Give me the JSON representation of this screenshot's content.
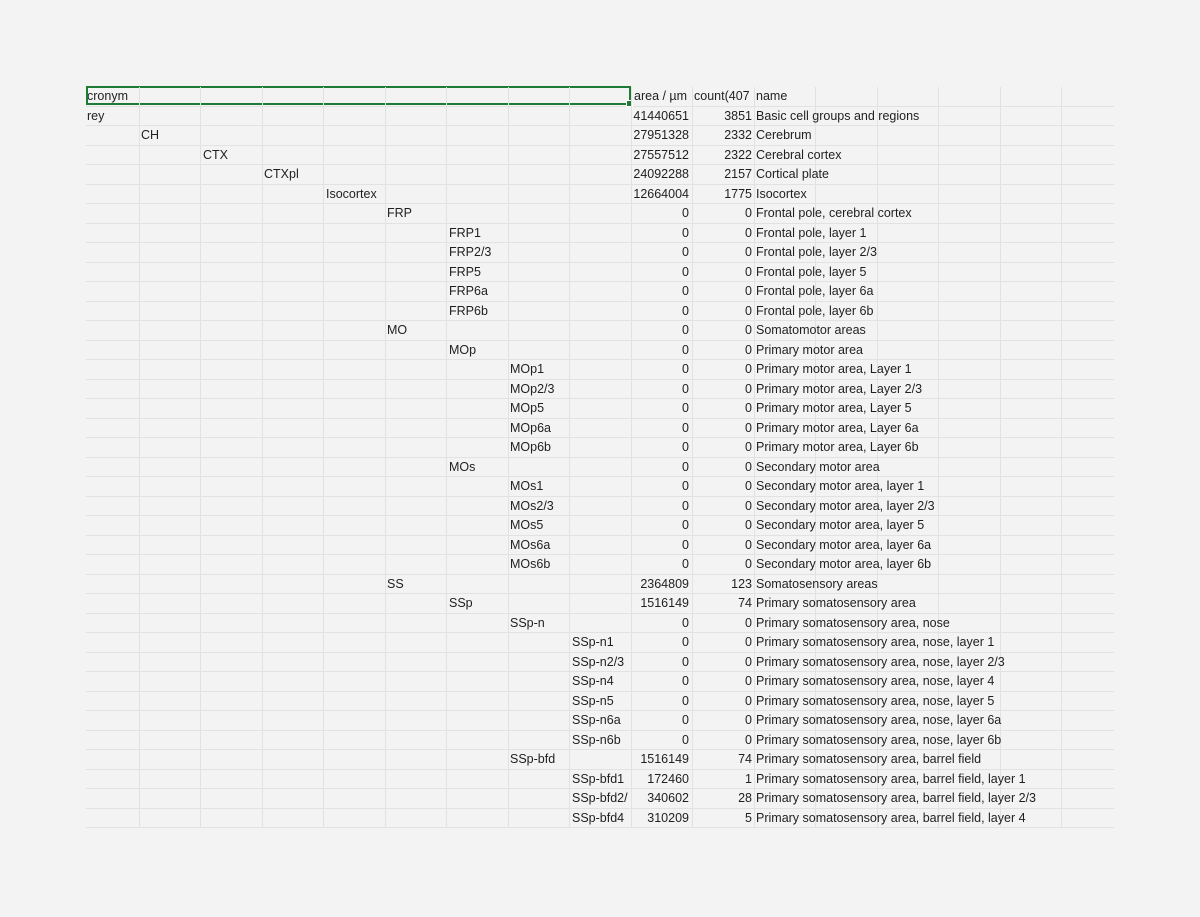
{
  "header": {
    "acronym": "cronym",
    "area": "area / µm",
    "count": "count(407",
    "name": "name"
  },
  "rows": [
    {
      "acronym": "rey",
      "level": 0,
      "area": "41440651",
      "count": "3851",
      "name": "Basic cell groups and regions"
    },
    {
      "acronym": "CH",
      "level": 1,
      "area": "27951328",
      "count": "2332",
      "name": "Cerebrum"
    },
    {
      "acronym": "CTX",
      "level": 2,
      "area": "27557512",
      "count": "2322",
      "name": "Cerebral cortex"
    },
    {
      "acronym": "CTXpl",
      "level": 3,
      "area": "24092288",
      "count": "2157",
      "name": "Cortical plate"
    },
    {
      "acronym": "Isocortex",
      "level": 4,
      "area": "12664004",
      "count": "1775",
      "name": "Isocortex"
    },
    {
      "acronym": "FRP",
      "level": 5,
      "area": "0",
      "count": "0",
      "name": "Frontal pole, cerebral cortex"
    },
    {
      "acronym": "FRP1",
      "level": 6,
      "area": "0",
      "count": "0",
      "name": "Frontal pole, layer 1"
    },
    {
      "acronym": "FRP2/3",
      "level": 6,
      "area": "0",
      "count": "0",
      "name": "Frontal pole, layer 2/3"
    },
    {
      "acronym": "FRP5",
      "level": 6,
      "area": "0",
      "count": "0",
      "name": "Frontal pole, layer 5"
    },
    {
      "acronym": "FRP6a",
      "level": 6,
      "area": "0",
      "count": "0",
      "name": "Frontal pole, layer 6a"
    },
    {
      "acronym": "FRP6b",
      "level": 6,
      "area": "0",
      "count": "0",
      "name": "Frontal pole, layer 6b"
    },
    {
      "acronym": "MO",
      "level": 5,
      "area": "0",
      "count": "0",
      "name": "Somatomotor areas"
    },
    {
      "acronym": "MOp",
      "level": 6,
      "area": "0",
      "count": "0",
      "name": "Primary motor area"
    },
    {
      "acronym": "MOp1",
      "level": 7,
      "area": "0",
      "count": "0",
      "name": "Primary motor area, Layer 1"
    },
    {
      "acronym": "MOp2/3",
      "level": 7,
      "area": "0",
      "count": "0",
      "name": "Primary motor area, Layer 2/3"
    },
    {
      "acronym": "MOp5",
      "level": 7,
      "area": "0",
      "count": "0",
      "name": "Primary motor area, Layer 5"
    },
    {
      "acronym": "MOp6a",
      "level": 7,
      "area": "0",
      "count": "0",
      "name": "Primary motor area, Layer 6a"
    },
    {
      "acronym": "MOp6b",
      "level": 7,
      "area": "0",
      "count": "0",
      "name": "Primary motor area, Layer 6b"
    },
    {
      "acronym": "MOs",
      "level": 6,
      "area": "0",
      "count": "0",
      "name": "Secondary motor area"
    },
    {
      "acronym": "MOs1",
      "level": 7,
      "area": "0",
      "count": "0",
      "name": "Secondary motor area, layer 1"
    },
    {
      "acronym": "MOs2/3",
      "level": 7,
      "area": "0",
      "count": "0",
      "name": "Secondary motor area, layer 2/3"
    },
    {
      "acronym": "MOs5",
      "level": 7,
      "area": "0",
      "count": "0",
      "name": "Secondary motor area, layer 5"
    },
    {
      "acronym": "MOs6a",
      "level": 7,
      "area": "0",
      "count": "0",
      "name": "Secondary motor area, layer 6a"
    },
    {
      "acronym": "MOs6b",
      "level": 7,
      "area": "0",
      "count": "0",
      "name": "Secondary motor area, layer 6b"
    },
    {
      "acronym": "SS",
      "level": 5,
      "area": "2364809",
      "count": "123",
      "name": "Somatosensory areas"
    },
    {
      "acronym": "SSp",
      "level": 6,
      "area": "1516149",
      "count": "74",
      "name": "Primary somatosensory area"
    },
    {
      "acronym": "SSp-n",
      "level": 7,
      "area": "0",
      "count": "0",
      "name": "Primary somatosensory area, nose"
    },
    {
      "acronym": "SSp-n1",
      "level": 8,
      "area": "0",
      "count": "0",
      "name": "Primary somatosensory area, nose, layer 1"
    },
    {
      "acronym": "SSp-n2/3",
      "level": 8,
      "area": "0",
      "count": "0",
      "name": "Primary somatosensory area, nose, layer 2/3"
    },
    {
      "acronym": "SSp-n4",
      "level": 8,
      "area": "0",
      "count": "0",
      "name": "Primary somatosensory area, nose, layer 4"
    },
    {
      "acronym": "SSp-n5",
      "level": 8,
      "area": "0",
      "count": "0",
      "name": "Primary somatosensory area, nose, layer 5"
    },
    {
      "acronym": "SSp-n6a",
      "level": 8,
      "area": "0",
      "count": "0",
      "name": "Primary somatosensory area, nose, layer 6a"
    },
    {
      "acronym": "SSp-n6b",
      "level": 8,
      "area": "0",
      "count": "0",
      "name": "Primary somatosensory area, nose, layer 6b"
    },
    {
      "acronym": "SSp-bfd",
      "level": 7,
      "area": "1516149",
      "count": "74",
      "name": "Primary somatosensory area, barrel field"
    },
    {
      "acronym": "SSp-bfd1",
      "level": 8,
      "area": "172460",
      "count": "1",
      "name": "Primary somatosensory area, barrel field, layer 1"
    },
    {
      "acronym": "SSp-bfd2/",
      "level": 8,
      "area": "340602",
      "count": "28",
      "name": "Primary somatosensory area, barrel field, layer 2/3"
    },
    {
      "acronym": "SSp-bfd4",
      "level": 8,
      "area": "310209",
      "count": "5",
      "name": "Primary somatosensory area, barrel field, layer 4"
    }
  ]
}
